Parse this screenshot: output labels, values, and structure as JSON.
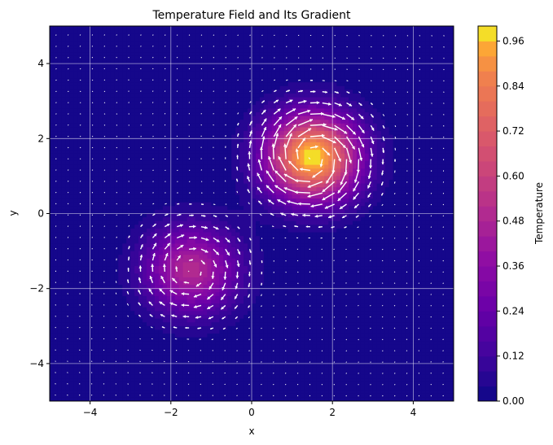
{
  "chart_data": {
    "type": "heatmap",
    "subtype": "filled-contour-with-quiver",
    "title": "Temperature Field and Its Gradient",
    "xlabel": "x",
    "ylabel": "y",
    "xlim": [
      -5,
      5
    ],
    "ylim": [
      -5,
      5
    ],
    "xticks": [
      -4,
      -2,
      0,
      2,
      4
    ],
    "yticks": [
      -4,
      -2,
      0,
      2,
      4
    ],
    "xtick_labels": [
      "−4",
      "−2",
      "0",
      "2",
      "4"
    ],
    "ytick_labels": [
      "−4",
      "−2",
      "0",
      "2",
      "4"
    ],
    "grid": true,
    "grid_color": "#ffffff",
    "colormap": "plasma",
    "colorbar": {
      "label": "Temperature",
      "range": [
        0.0,
        1.0
      ],
      "levels": 25,
      "ticks": [
        0.0,
        0.12,
        0.24,
        0.36,
        0.48,
        0.6,
        0.72,
        0.84,
        0.96
      ],
      "tick_labels": [
        "0.00",
        "0.12",
        "0.24",
        "0.36",
        "0.48",
        "0.60",
        "0.72",
        "0.84",
        "0.96"
      ]
    },
    "sources": [
      {
        "center": [
          1.5,
          1.5
        ],
        "peak": 1.0,
        "sigma": 0.8
      },
      {
        "center": [
          -1.5,
          -1.5
        ],
        "peak": 0.5,
        "sigma": 0.8
      }
    ],
    "quiver": {
      "color": "#ffffff",
      "grid_spacing": 0.3,
      "description": "rotated gradient arrows circulating around each hot spot"
    }
  }
}
